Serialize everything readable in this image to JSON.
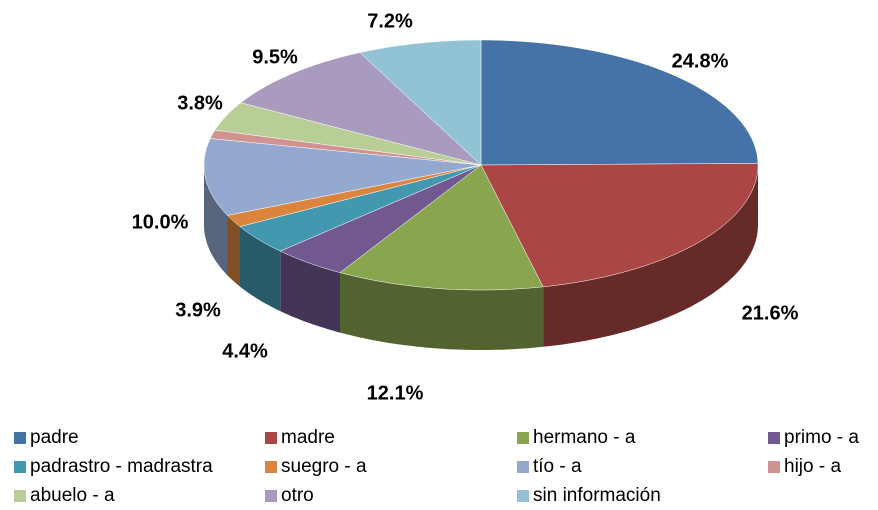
{
  "chart_data": {
    "type": "pie",
    "categories": [
      "padre",
      "madre",
      "hermano - a",
      "primo - a",
      "padrastro - madrastra",
      "suegro - a",
      "tío - a",
      "hijo - a",
      "abuelo - a",
      "otro",
      "sin información"
    ],
    "values": [
      24.8,
      21.6,
      12.1,
      4.4,
      3.9,
      1.6,
      10.0,
      1.1,
      3.8,
      9.5,
      7.2
    ],
    "value_labels": [
      "24.8%",
      "21.6%",
      "12.1%",
      "4.4%",
      "3.9%",
      null,
      "10.0%",
      null,
      "3.8%",
      "9.5%",
      "7.2%"
    ],
    "colors": [
      "#4572a7",
      "#aa4643",
      "#89a54e",
      "#71588f",
      "#4198af",
      "#db843d",
      "#93a9cf",
      "#d19392",
      "#b9cd96",
      "#a99bbd",
      "#92c3d5"
    ],
    "legend": "bottom"
  }
}
